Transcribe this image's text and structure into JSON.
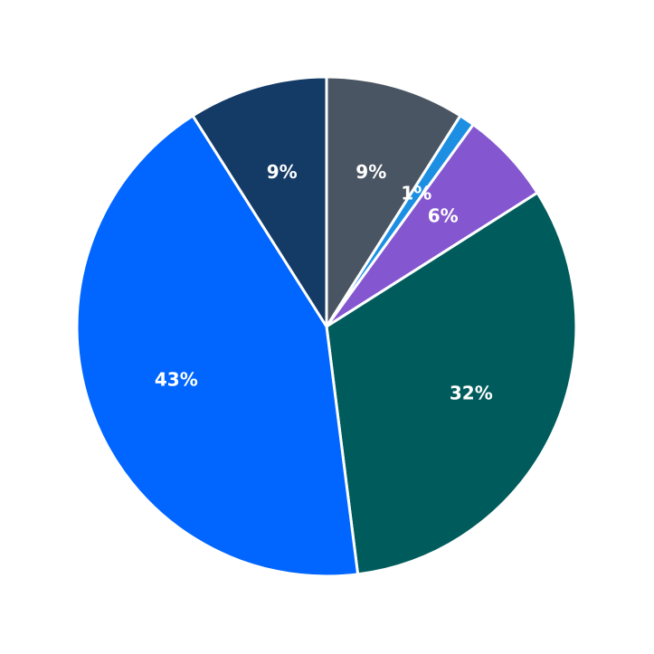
{
  "chart_data": {
    "type": "pie",
    "values": [
      9,
      1,
      6,
      32,
      43,
      9
    ],
    "value_labels": [
      "9%",
      "1%",
      "6%",
      "32%",
      "43%",
      "9%"
    ],
    "colors": [
      "#4a5563",
      "#1c8fe3",
      "#8456cf",
      "#005c5c",
      "#0066ff",
      "#143a66"
    ],
    "start_angle": 90,
    "direction": "clockwise"
  }
}
